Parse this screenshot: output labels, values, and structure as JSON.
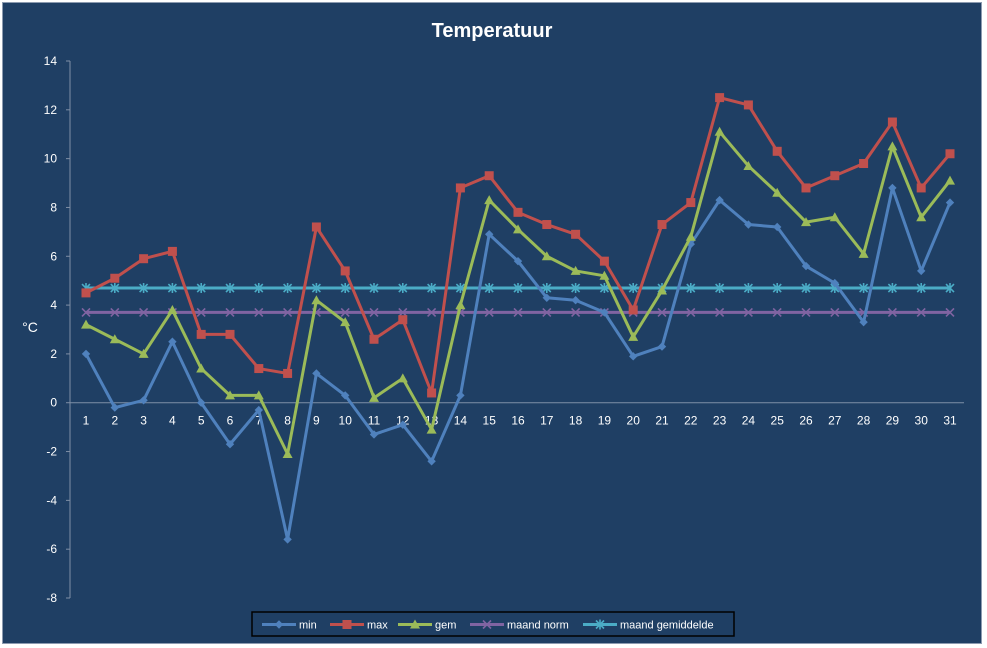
{
  "chart_data": {
    "type": "line",
    "title": "Temperatuur",
    "xlabel": "",
    "ylabel": "°C",
    "ylim": [
      -8,
      14
    ],
    "yticks": [
      -8,
      -6,
      -4,
      -2,
      0,
      2,
      4,
      6,
      8,
      10,
      12,
      14
    ],
    "x": [
      1,
      2,
      3,
      4,
      5,
      6,
      7,
      8,
      9,
      10,
      11,
      12,
      13,
      14,
      15,
      16,
      17,
      18,
      19,
      20,
      21,
      22,
      23,
      24,
      25,
      26,
      27,
      28,
      29,
      30,
      31
    ],
    "grid": false,
    "legend": "bottom",
    "series": [
      {
        "name": "min",
        "color": "#4f81bd",
        "marker": "diamond",
        "values": [
          2.0,
          -0.2,
          0.1,
          2.5,
          0.0,
          -1.7,
          -0.3,
          -5.6,
          1.2,
          0.3,
          -1.3,
          -0.9,
          -2.4,
          0.3,
          6.9,
          5.8,
          4.3,
          4.2,
          3.7,
          1.9,
          2.3,
          6.5,
          8.3,
          7.3,
          7.2,
          5.6,
          4.9,
          3.3,
          8.8,
          5.4,
          8.2
        ]
      },
      {
        "name": "max",
        "color": "#c0504d",
        "marker": "square",
        "values": [
          4.5,
          5.1,
          5.9,
          6.2,
          2.8,
          2.8,
          1.4,
          1.2,
          7.2,
          5.4,
          2.6,
          3.4,
          0.4,
          8.8,
          9.3,
          7.8,
          7.3,
          6.9,
          5.8,
          3.8,
          7.3,
          8.2,
          12.5,
          12.2,
          10.3,
          8.8,
          9.3,
          9.8,
          11.5,
          8.8,
          10.2
        ]
      },
      {
        "name": "gem",
        "color": "#9bbb59",
        "marker": "triangle",
        "values": [
          3.2,
          2.6,
          2.0,
          3.8,
          1.4,
          0.3,
          0.3,
          -2.1,
          4.2,
          3.3,
          0.2,
          1.0,
          -1.1,
          4.0,
          8.3,
          7.1,
          6.0,
          5.4,
          5.2,
          2.7,
          4.6,
          6.8,
          11.1,
          9.7,
          8.6,
          7.4,
          7.6,
          6.1,
          10.5,
          7.6,
          9.1
        ]
      },
      {
        "name": "maand norm",
        "color": "#8064a2",
        "marker": "x",
        "values": [
          3.7,
          3.7,
          3.7,
          3.7,
          3.7,
          3.7,
          3.7,
          3.7,
          3.7,
          3.7,
          3.7,
          3.7,
          3.7,
          3.7,
          3.7,
          3.7,
          3.7,
          3.7,
          3.7,
          3.7,
          3.7,
          3.7,
          3.7,
          3.7,
          3.7,
          3.7,
          3.7,
          3.7,
          3.7,
          3.7,
          3.7
        ]
      },
      {
        "name": "maand gemiddelde",
        "color": "#4bacc6",
        "marker": "star",
        "values": [
          4.7,
          4.7,
          4.7,
          4.7,
          4.7,
          4.7,
          4.7,
          4.7,
          4.7,
          4.7,
          4.7,
          4.7,
          4.7,
          4.7,
          4.7,
          4.7,
          4.7,
          4.7,
          4.7,
          4.7,
          4.7,
          4.7,
          4.7,
          4.7,
          4.7,
          4.7,
          4.7,
          4.7,
          4.7,
          4.7,
          4.7
        ]
      }
    ]
  }
}
